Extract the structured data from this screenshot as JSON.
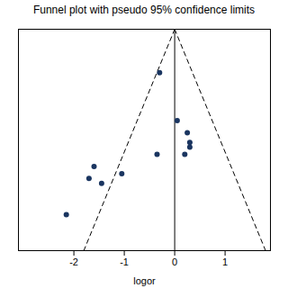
{
  "chart_data": {
    "type": "scatter",
    "title": "Funnel plot with pseudo 95% confidence limits",
    "xlabel": "logor",
    "xlim": [
      -3.1,
      1.9
    ],
    "xticks": [
      -2,
      -1,
      0,
      1
    ],
    "ylim": [
      0.92,
      0.0
    ],
    "yticks": [],
    "tick_labels": "x",
    "grid": false,
    "series": [
      {
        "type": "line",
        "color": "#000000",
        "line_style": "dashed",
        "x": [
          0.0,
          -1.8032
        ],
        "values": [
          0.0,
          0.92
        ]
      },
      {
        "type": "line",
        "color": "#000000",
        "line_style": "dashed",
        "x": [
          0.0,
          1.8032
        ],
        "values": [
          0.0,
          0.92
        ]
      },
      {
        "type": "line",
        "color": "#000000",
        "line_style": "solid",
        "x": [
          0.0,
          0.0
        ],
        "values": [
          0.0,
          0.92
        ]
      },
      {
        "type": "scatter",
        "color": "#1a3560",
        "marker": "circle",
        "x": [
          -0.3,
          0.05,
          0.25,
          0.3,
          0.2,
          0.3,
          -1.05,
          -1.6,
          -1.7,
          -1.45,
          -2.15,
          -0.35
        ],
        "values": [
          0.18,
          0.38,
          0.43,
          0.47,
          0.52,
          0.49,
          0.6,
          0.57,
          0.62,
          0.64,
          0.77,
          0.52
        ]
      }
    ]
  }
}
